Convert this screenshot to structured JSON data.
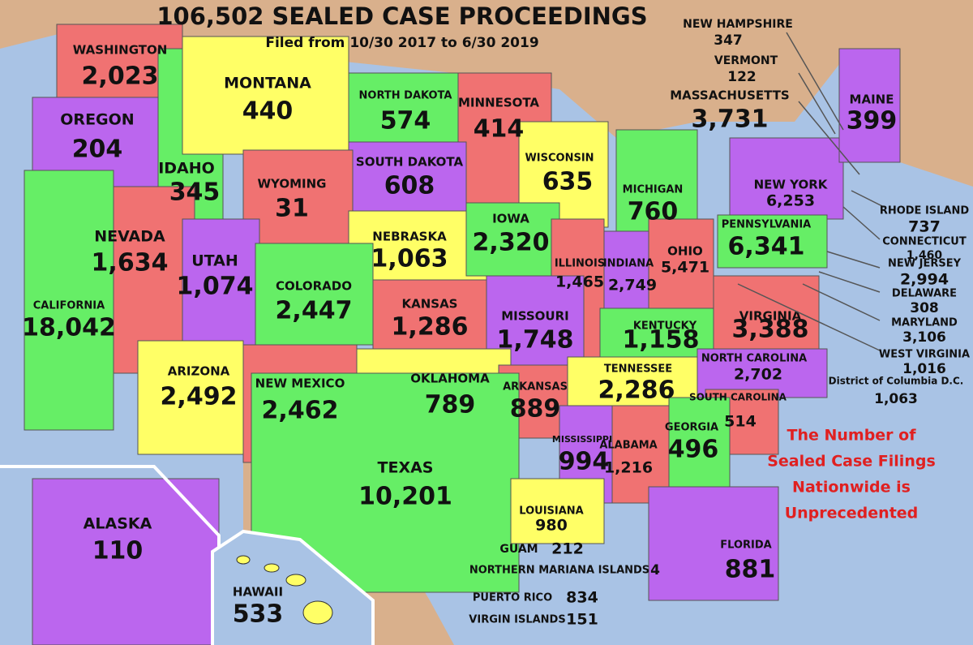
{
  "header": {
    "title": "106,502 SEALED CASE PROCEEDINGS",
    "subtitle": "Filed from 10/30 2017 to 6/30 2019"
  },
  "states": [
    {
      "name": "WASHINGTON",
      "value": "2,023"
    },
    {
      "name": "OREGON",
      "value": "204"
    },
    {
      "name": "IDAHO",
      "value": "345"
    },
    {
      "name": "MONTANA",
      "value": "440"
    },
    {
      "name": "NORTH DAKOTA",
      "value": "574"
    },
    {
      "name": "MINNESOTA",
      "value": "414"
    },
    {
      "name": "SOUTH DAKOTA",
      "value": "608"
    },
    {
      "name": "WYOMING",
      "value": "31"
    },
    {
      "name": "WISCONSIN",
      "value": "635"
    },
    {
      "name": "MICHIGAN",
      "value": "760"
    },
    {
      "name": "NEW YORK",
      "value": "6,253"
    },
    {
      "name": "NEVADA",
      "value": "1,634"
    },
    {
      "name": "UTAH",
      "value": "1,074"
    },
    {
      "name": "NEBRASKA",
      "value": "1,063"
    },
    {
      "name": "IOWA",
      "value": "2,320"
    },
    {
      "name": "COLORADO",
      "value": "2,447"
    },
    {
      "name": "KANSAS",
      "value": "1,286"
    },
    {
      "name": "ILLINOIS",
      "value": "1,465"
    },
    {
      "name": "INDIANA",
      "value": "2,749"
    },
    {
      "name": "OHIO",
      "value": "5,471"
    },
    {
      "name": "PENNSYLVANIA",
      "value": "6,341"
    },
    {
      "name": "CALIFORNIA",
      "value": "18,042"
    },
    {
      "name": "MISSOURI",
      "value": "1,748"
    },
    {
      "name": "KENTUCKY",
      "value": "1,158"
    },
    {
      "name": "VIRGINIA",
      "value": "3,388"
    },
    {
      "name": "ARIZONA",
      "value": "2,492"
    },
    {
      "name": "NEW MEXICO",
      "value": "2,462"
    },
    {
      "name": "OKLAHOMA",
      "value": "789"
    },
    {
      "name": "ARKANSAS",
      "value": "889"
    },
    {
      "name": "TENNESSEE",
      "value": "2,286"
    },
    {
      "name": "NORTH CAROLINA",
      "value": "2,702"
    },
    {
      "name": "SOUTH CAROLINA",
      "value": "514"
    },
    {
      "name": "GEORGIA",
      "value": "496"
    },
    {
      "name": "ALABAMA",
      "value": "1,216"
    },
    {
      "name": "MISSISSIPPI",
      "value": "994"
    },
    {
      "name": "TEXAS",
      "value": "10,201"
    },
    {
      "name": "LOUISIANA",
      "value": "980"
    },
    {
      "name": "FLORIDA",
      "value": "881"
    },
    {
      "name": "ALASKA",
      "value": "110"
    },
    {
      "name": "HAWAII",
      "value": "533"
    },
    {
      "name": "MAINE",
      "value": "399"
    },
    {
      "name": "NEW HAMPSHIRE",
      "value": "347"
    },
    {
      "name": "VERMONT",
      "value": "122"
    },
    {
      "name": "MASSACHUSETTS",
      "value": "3,731"
    },
    {
      "name": "RHODE ISLAND",
      "value": "737"
    },
    {
      "name": "CONNECTICUT",
      "value": "1,460"
    },
    {
      "name": "NEW JERSEY",
      "value": "2,994"
    },
    {
      "name": "DELAWARE",
      "value": "308"
    },
    {
      "name": "MARYLAND",
      "value": "3,106"
    },
    {
      "name": "WEST VIRGINIA",
      "value": "1,016"
    },
    {
      "name": "District of Columbia D.C.",
      "value": "1,063"
    },
    {
      "name": "GUAM",
      "value": "212"
    },
    {
      "name": "NORTHERN MARIANA ISLANDS",
      "value": "4"
    },
    {
      "name": "PUERTO RICO",
      "value": "834"
    },
    {
      "name": "VIRGIN ISLANDS",
      "value": "151"
    }
  ],
  "note": [
    "The Number of",
    "Sealed Case Filings",
    "Nationwide is",
    "Unprecedented"
  ]
}
